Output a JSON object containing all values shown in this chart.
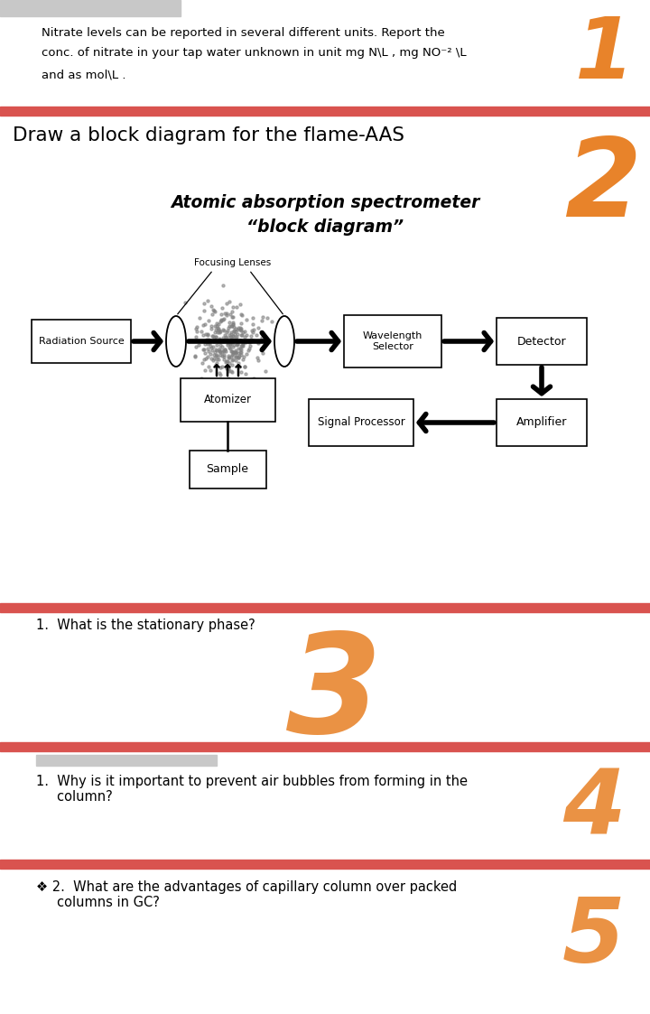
{
  "bg_color": "#ffffff",
  "divider_color": "#d9534f",
  "number_color": "#e8832a",
  "gray_bar_color": "#c8c8c8",
  "top_gray_bar_color": "#c8c8c8",
  "sec1_lines": [
    "Nitrate levels can be reported in several different units. Report the",
    "conc. of nitrate in your tap water unknown in unit mg N\\L , mg NO⁻² \\L",
    "and as mol\\L ."
  ],
  "sec2_title": "Draw a block diagram for the flame-AAS",
  "diag_title1": "Atomic absorption spectrometer",
  "diag_title2": "“block diagram”",
  "sec3_text": "1.  What is the stationary phase?",
  "sec4_text": "1.  Why is it important to prevent air bubbles from forming in the\n     column?",
  "sec5_text": "❖ 2.  What are the advantages of capillary column over packed\n     columns in GC?"
}
